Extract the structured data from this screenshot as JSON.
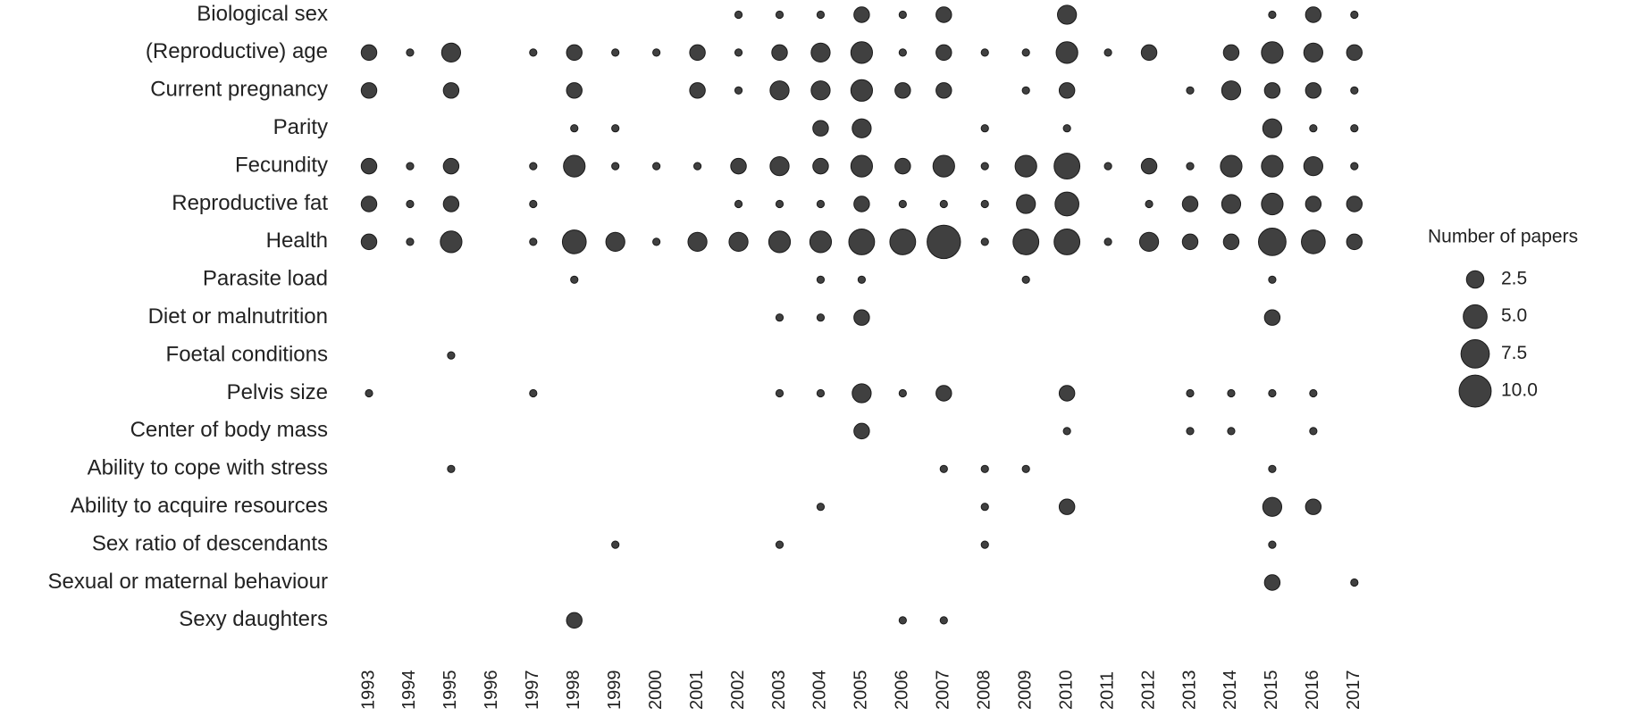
{
  "chart_data": {
    "type": "bubble",
    "categories": [
      "1993",
      "1994",
      "1995",
      "1996",
      "1997",
      "1998",
      "1999",
      "2000",
      "2001",
      "2002",
      "2003",
      "2004",
      "2005",
      "2006",
      "2007",
      "2008",
      "2009",
      "2010",
      "2011",
      "2012",
      "2013",
      "2014",
      "2015",
      "2016",
      "2017"
    ],
    "y_categories": [
      "Biological sex",
      "(Reproductive) age",
      "Current pregnancy",
      "Parity",
      "Fecundity",
      "Reproductive fat",
      "Health",
      "Parasite load",
      "Diet or malnutrition",
      "Foetal conditions",
      "Pelvis size",
      "Center of body mass",
      "Ability to cope with stress",
      "Ability to acquire resources",
      "Sex ratio of descendants",
      "Sexual or maternal behaviour",
      "Sexy daughters"
    ],
    "sizes": [
      [
        null,
        null,
        null,
        null,
        null,
        null,
        null,
        null,
        null,
        1,
        1,
        1,
        2,
        1,
        2,
        null,
        null,
        3,
        null,
        null,
        null,
        null,
        1,
        2,
        1
      ],
      [
        2,
        1,
        3,
        null,
        1,
        2,
        1,
        1,
        2,
        1,
        2,
        3,
        4,
        1,
        2,
        1,
        1,
        4,
        1,
        2,
        null,
        2,
        4,
        3,
        2
      ],
      [
        2,
        null,
        2,
        null,
        null,
        2,
        null,
        null,
        2,
        1,
        3,
        3,
        4,
        2,
        2,
        null,
        1,
        2,
        null,
        null,
        1,
        3,
        2,
        2,
        1
      ],
      [
        null,
        null,
        null,
        null,
        null,
        1,
        1,
        null,
        null,
        null,
        null,
        2,
        3,
        null,
        null,
        1,
        null,
        1,
        null,
        null,
        null,
        null,
        3,
        1,
        1
      ],
      [
        2,
        1,
        2,
        null,
        1,
        4,
        1,
        1,
        1,
        2,
        3,
        2,
        4,
        2,
        4,
        1,
        4,
        6,
        1,
        2,
        1,
        4,
        4,
        3,
        1
      ],
      [
        2,
        1,
        2,
        null,
        1,
        null,
        null,
        null,
        null,
        1,
        1,
        1,
        2,
        1,
        1,
        1,
        3,
        5,
        null,
        1,
        2,
        3,
        4,
        2,
        2
      ],
      [
        2,
        1,
        4,
        null,
        1,
        5,
        3,
        1,
        3,
        3,
        4,
        4,
        6,
        6,
        11,
        1,
        6,
        6,
        1,
        3,
        2,
        2,
        7,
        5,
        2
      ],
      [
        null,
        null,
        null,
        null,
        null,
        1,
        null,
        null,
        null,
        null,
        null,
        1,
        1,
        null,
        null,
        null,
        1,
        null,
        null,
        null,
        null,
        null,
        1,
        null,
        null
      ],
      [
        null,
        null,
        null,
        null,
        null,
        null,
        null,
        null,
        null,
        null,
        1,
        1,
        2,
        null,
        null,
        null,
        null,
        null,
        null,
        null,
        null,
        null,
        2,
        null,
        null
      ],
      [
        null,
        null,
        1,
        null,
        null,
        null,
        null,
        null,
        null,
        null,
        null,
        null,
        null,
        null,
        null,
        null,
        null,
        null,
        null,
        null,
        null,
        null,
        null,
        null,
        null
      ],
      [
        1,
        null,
        null,
        null,
        1,
        null,
        null,
        null,
        null,
        null,
        1,
        1,
        3,
        1,
        2,
        null,
        null,
        2,
        null,
        null,
        1,
        1,
        1,
        1,
        null
      ],
      [
        null,
        null,
        null,
        null,
        null,
        null,
        null,
        null,
        null,
        null,
        null,
        null,
        2,
        null,
        null,
        null,
        null,
        1,
        null,
        null,
        1,
        1,
        null,
        1,
        null
      ],
      [
        null,
        null,
        1,
        null,
        null,
        null,
        null,
        null,
        null,
        null,
        null,
        null,
        null,
        null,
        1,
        1,
        1,
        null,
        null,
        null,
        null,
        null,
        1,
        null,
        null
      ],
      [
        null,
        null,
        null,
        null,
        null,
        null,
        null,
        null,
        null,
        null,
        null,
        1,
        null,
        null,
        null,
        1,
        null,
        2,
        null,
        null,
        null,
        null,
        3,
        2,
        null
      ],
      [
        null,
        null,
        null,
        null,
        null,
        null,
        1,
        null,
        null,
        null,
        1,
        null,
        null,
        null,
        null,
        1,
        null,
        null,
        null,
        null,
        null,
        null,
        1,
        null,
        null
      ],
      [
        null,
        null,
        null,
        null,
        null,
        null,
        null,
        null,
        null,
        null,
        null,
        null,
        null,
        null,
        null,
        null,
        null,
        null,
        null,
        null,
        null,
        null,
        2,
        null,
        1
      ],
      [
        null,
        null,
        null,
        null,
        null,
        2,
        null,
        null,
        null,
        null,
        null,
        null,
        null,
        1,
        1,
        null,
        null,
        null,
        null,
        null,
        null,
        null,
        null,
        null,
        null
      ]
    ],
    "color": "#404040",
    "size_legend": {
      "title": "Number of papers",
      "values": [
        2.5,
        {
          "value": 5,
          "label": "5.0"
        },
        7.5,
        {
          "value": 10,
          "label": "10.0"
        }
      ]
    }
  }
}
